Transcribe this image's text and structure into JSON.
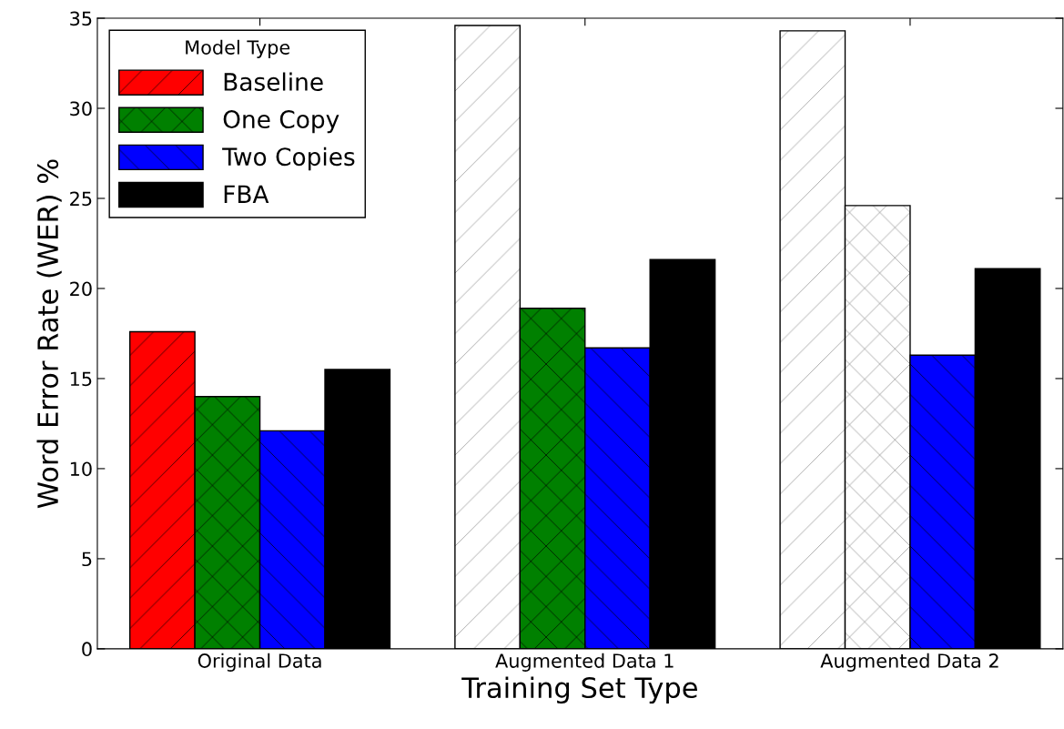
{
  "chart_data": {
    "type": "bar",
    "xlabel": "Training Set Type",
    "ylabel": "Word Error Rate (WER) %",
    "legend_title": "Model Type",
    "legend": "top left",
    "grid": false,
    "categories": [
      "Original Data",
      "Augmented Data 1",
      "Augmented Data 2"
    ],
    "ylim": [
      0,
      35
    ],
    "yticks": [
      0,
      5,
      10,
      15,
      20,
      25,
      30,
      35
    ],
    "series": [
      {
        "name": "Baseline",
        "color": "#ff0000",
        "colors": [
          "#ff0000",
          "#ffffff",
          "#ffffff"
        ],
        "values": [
          17.6,
          34.6,
          34.3
        ]
      },
      {
        "name": "One Copy",
        "color": "#008000",
        "colors": [
          "#008000",
          "#008000",
          "#ffffff"
        ],
        "values": [
          14.0,
          18.9,
          24.6
        ]
      },
      {
        "name": "Two Copies",
        "color": "#0000ff",
        "colors": [
          "#0000ff",
          "#0000ff",
          "#0000ff"
        ],
        "values": [
          12.1,
          16.7,
          16.3
        ]
      },
      {
        "name": "FBA",
        "color": "#000000",
        "colors": [
          "#000000",
          "#000000",
          "#000000"
        ],
        "values": [
          15.5,
          21.6,
          21.1
        ]
      }
    ]
  }
}
